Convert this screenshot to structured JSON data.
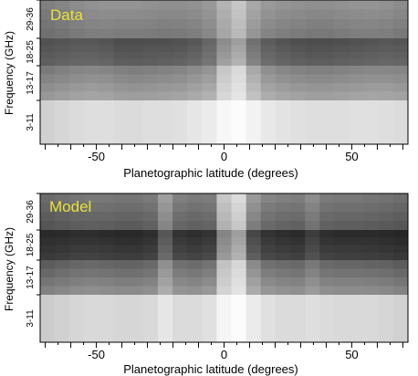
{
  "chart_data": [
    {
      "type": "heatmap",
      "label": "Data",
      "xlabel": "Planetographic latitude (degrees)",
      "ylabel": "Frequency (GHz)",
      "xlim": [
        -72,
        72
      ],
      "x_ticks": [
        -50,
        0,
        50
      ],
      "x_tick_labels": [
        "-50",
        "0",
        "50"
      ],
      "y_bands": [
        "3-11",
        "13-17",
        "18-25",
        "29-36"
      ],
      "colormap": "grayscale",
      "bands": [
        {
          "name": "29-36",
          "intensity": [
            0.5,
            0.52,
            0.55,
            0.57,
            0.58,
            0.58,
            0.58,
            0.57,
            0.56,
            0.56,
            0.57,
            0.6,
            0.7,
            0.78,
            0.66,
            0.6,
            0.58,
            0.57,
            0.56,
            0.56,
            0.57,
            0.58,
            0.58,
            0.57,
            0.55
          ]
        },
        {
          "name": "18-25",
          "intensity": [
            0.32,
            0.33,
            0.34,
            0.34,
            0.33,
            0.3,
            0.3,
            0.31,
            0.31,
            0.32,
            0.34,
            0.4,
            0.55,
            0.62,
            0.44,
            0.36,
            0.33,
            0.31,
            0.3,
            0.3,
            0.31,
            0.32,
            0.33,
            0.34,
            0.33
          ]
        },
        {
          "name": "13-17",
          "intensity": [
            0.48,
            0.5,
            0.52,
            0.53,
            0.52,
            0.5,
            0.49,
            0.5,
            0.51,
            0.52,
            0.55,
            0.58,
            0.78,
            0.85,
            0.66,
            0.56,
            0.53,
            0.51,
            0.5,
            0.5,
            0.51,
            0.52,
            0.53,
            0.53,
            0.52
          ]
        },
        {
          "name": "3-11",
          "intensity": [
            0.82,
            0.84,
            0.86,
            0.87,
            0.87,
            0.86,
            0.86,
            0.87,
            0.87,
            0.88,
            0.9,
            0.92,
            0.97,
            0.99,
            0.95,
            0.91,
            0.89,
            0.88,
            0.87,
            0.87,
            0.87,
            0.88,
            0.88,
            0.87,
            0.86
          ]
        }
      ]
    },
    {
      "type": "heatmap",
      "label": "Model",
      "xlabel": "Planetographic latitude (degrees)",
      "ylabel": "Frequency (GHz)",
      "xlim": [
        -72,
        72
      ],
      "x_ticks": [
        -50,
        0,
        50
      ],
      "x_tick_labels": [
        "-50",
        "0",
        "50"
      ],
      "y_bands": [
        "3-11",
        "13-17",
        "18-25",
        "29-36"
      ],
      "colormap": "grayscale",
      "bands": [
        {
          "name": "29-36",
          "intensity": [
            0.42,
            0.44,
            0.46,
            0.47,
            0.47,
            0.46,
            0.46,
            0.48,
            0.62,
            0.5,
            0.48,
            0.49,
            0.78,
            0.86,
            0.6,
            0.52,
            0.5,
            0.49,
            0.55,
            0.48,
            0.47,
            0.47,
            0.46,
            0.45,
            0.43
          ]
        },
        {
          "name": "18-25",
          "intensity": [
            0.16,
            0.17,
            0.18,
            0.18,
            0.17,
            0.16,
            0.16,
            0.18,
            0.34,
            0.2,
            0.18,
            0.2,
            0.52,
            0.62,
            0.28,
            0.2,
            0.18,
            0.17,
            0.24,
            0.18,
            0.17,
            0.17,
            0.17,
            0.16,
            0.15
          ]
        },
        {
          "name": "13-17",
          "intensity": [
            0.36,
            0.38,
            0.4,
            0.41,
            0.4,
            0.39,
            0.39,
            0.41,
            0.56,
            0.44,
            0.42,
            0.45,
            0.76,
            0.84,
            0.54,
            0.44,
            0.42,
            0.41,
            0.47,
            0.41,
            0.4,
            0.4,
            0.39,
            0.38,
            0.36
          ]
        },
        {
          "name": "3-11",
          "intensity": [
            0.8,
            0.82,
            0.84,
            0.85,
            0.85,
            0.84,
            0.84,
            0.85,
            0.9,
            0.86,
            0.86,
            0.88,
            0.96,
            0.99,
            0.92,
            0.88,
            0.86,
            0.86,
            0.87,
            0.86,
            0.85,
            0.85,
            0.85,
            0.84,
            0.82
          ]
        }
      ]
    }
  ],
  "style": {
    "label_color": "#e8e23a",
    "axis_color": "#000000",
    "background": "#ffffff"
  }
}
